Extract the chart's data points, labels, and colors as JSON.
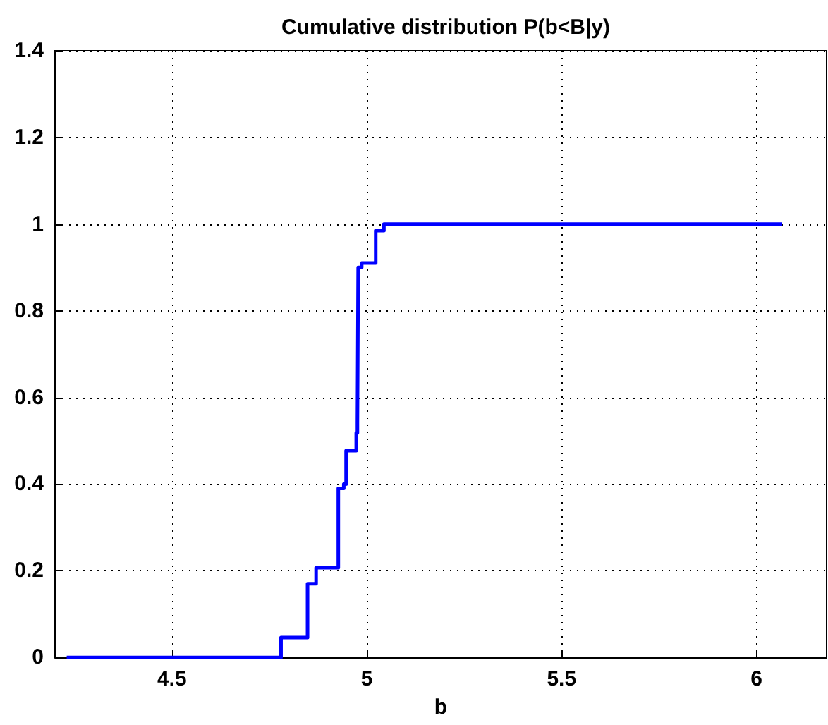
{
  "chart_data": {
    "type": "step",
    "title": "Cumulative distribution P(b<B|y)",
    "xlabel": "b",
    "x": [
      4.23,
      4.78,
      4.848,
      4.87,
      4.927,
      4.941,
      4.947,
      4.973,
      4.976,
      4.978,
      4.987,
      5.023,
      5.044,
      6.066
    ],
    "series": [
      {
        "color": "#0000ff",
        "values": [
          0,
          0.046,
          0.17,
          0.207,
          0.39,
          0.4,
          0.477,
          0.518,
          0.54,
          0.9,
          0.91,
          0.985,
          1,
          1
        ]
      }
    ],
    "xlim": [
      4.2,
      6.18
    ],
    "xticks": [
      4.5,
      5,
      5.5,
      6
    ],
    "ylim": [
      0,
      1.4
    ],
    "yticks": [
      0,
      0.2,
      0.4,
      0.6,
      0.8,
      1,
      1.2,
      1.4
    ],
    "grid": true,
    "line_style": "solid",
    "marker": "none"
  }
}
